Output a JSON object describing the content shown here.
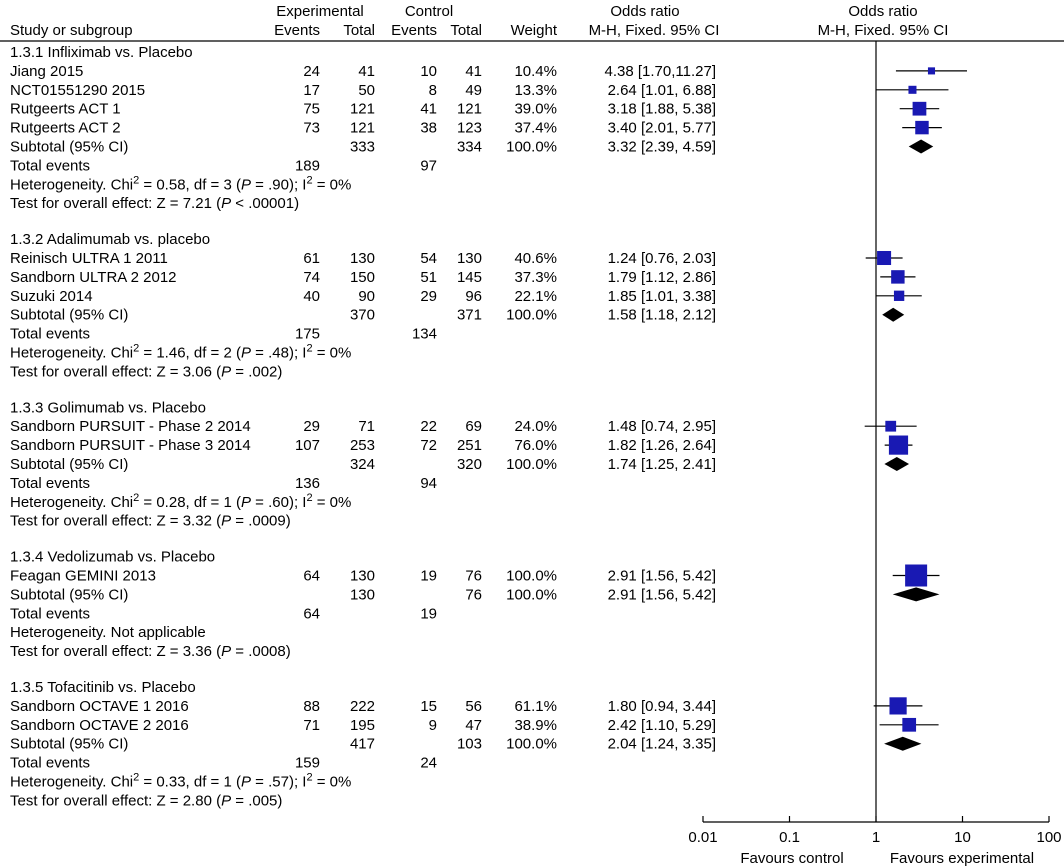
{
  "headers": {
    "study": "Study or subgroup",
    "experimental": "Experimental",
    "control": "Control",
    "events": "Events",
    "total": "Total",
    "weight": "Weight",
    "odds_ratio_text": "Odds ratio",
    "method_text": "M-H, Fixed. 95% CI",
    "odds_ratio_plot": "Odds ratio",
    "method_plot": "M-H, Fixed. 95% CI"
  },
  "colors": {
    "marker": "#1919b3",
    "diamond": "#000000",
    "line": "#000000"
  },
  "chart_data": {
    "type": "forest",
    "x_scale": "log",
    "xlim": [
      0.01,
      100
    ],
    "ticks": [
      "0.01",
      "0.1",
      "1",
      "10",
      "100"
    ],
    "tick_values": [
      0.01,
      0.1,
      1,
      10,
      100
    ],
    "null_line": 1,
    "favours_left": "Favours control",
    "favours_right": "Favours experimental",
    "subgroups": [
      {
        "name": "1.3.1 Infliximab vs. Placebo",
        "studies": [
          {
            "name": "Jiang 2015",
            "e_events": "24",
            "e_total": "41",
            "c_events": "10",
            "c_total": "41",
            "weight": "10.4%",
            "ci_text": "4.38 [1.70,11.27]",
            "or": 4.38,
            "lo": 1.7,
            "hi": 11.27,
            "w": 10.4
          },
          {
            "name": "NCT01551290 2015",
            "e_events": "17",
            "e_total": "50",
            "c_events": "8",
            "c_total": "49",
            "weight": "13.3%",
            "ci_text": "2.64 [1.01, 6.88]",
            "or": 2.64,
            "lo": 1.01,
            "hi": 6.88,
            "w": 13.3
          },
          {
            "name": "Rutgeerts ACT 1",
            "e_events": "75",
            "e_total": "121",
            "c_events": "41",
            "c_total": "121",
            "weight": "39.0%",
            "ci_text": "3.18 [1.88, 5.38]",
            "or": 3.18,
            "lo": 1.88,
            "hi": 5.38,
            "w": 39.0
          },
          {
            "name": "Rutgeerts ACT 2",
            "e_events": "73",
            "e_total": "121",
            "c_events": "38",
            "c_total": "123",
            "weight": "37.4%",
            "ci_text": "3.40 [2.01, 5.77]",
            "or": 3.4,
            "lo": 2.01,
            "hi": 5.77,
            "w": 37.4
          }
        ],
        "subtotal": {
          "label": "Subtotal (95% CI)",
          "e_total": "333",
          "c_total": "334",
          "weight": "100.0%",
          "ci_text": "3.32 [2.39, 4.59]",
          "or": 3.32,
          "lo": 2.39,
          "hi": 4.59
        },
        "total_events": {
          "label": "Total events",
          "e": "189",
          "c": "97"
        },
        "heterogeneity": {
          "pre": "Heterogeneity. Chi",
          "sup": "2",
          "mid": " = 0.58, df = 3 (",
          "p": "P",
          "post": " = .90); I",
          "sup2": "2",
          "end": " = 0%"
        },
        "overall": {
          "pre": "Test for overall effect: Z = 7.21 (",
          "p": "P",
          "post": " < .00001)"
        }
      },
      {
        "name": "1.3.2 Adalimumab vs. placebo",
        "studies": [
          {
            "name": "Reinisch ULTRA 1 2011",
            "e_events": "61",
            "e_total": "130",
            "c_events": "54",
            "c_total": "130",
            "weight": "40.6%",
            "ci_text": "1.24 [0.76, 2.03]",
            "or": 1.24,
            "lo": 0.76,
            "hi": 2.03,
            "w": 40.6
          },
          {
            "name": "Sandborn ULTRA 2 2012",
            "e_events": "74",
            "e_total": "150",
            "c_events": "51",
            "c_total": "145",
            "weight": "37.3%",
            "ci_text": "1.79 [1.12, 2.86]",
            "or": 1.79,
            "lo": 1.12,
            "hi": 2.86,
            "w": 37.3
          },
          {
            "name": "Suzuki 2014",
            "e_events": "40",
            "e_total": "90",
            "c_events": "29",
            "c_total": "96",
            "weight": "22.1%",
            "ci_text": "1.85 [1.01, 3.38]",
            "or": 1.85,
            "lo": 1.01,
            "hi": 3.38,
            "w": 22.1
          }
        ],
        "subtotal": {
          "label": "Subtotal (95% CI)",
          "e_total": "370",
          "c_total": "371",
          "weight": "100.0%",
          "ci_text": "1.58 [1.18, 2.12]",
          "or": 1.58,
          "lo": 1.18,
          "hi": 2.12
        },
        "total_events": {
          "label": "Total events",
          "e": "175",
          "c": "134"
        },
        "heterogeneity": {
          "pre": "Heterogeneity. Chi",
          "sup": "2",
          "mid": " = 1.46, df = 2 (",
          "p": "P",
          "post": " = .48); I",
          "sup2": "2",
          "end": " = 0%"
        },
        "overall": {
          "pre": "Test for overall effect: Z = 3.06 (",
          "p": "P",
          "post": " = .002)"
        }
      },
      {
        "name": "1.3.3 Golimumab vs. Placebo",
        "studies": [
          {
            "name": "Sandborn PURSUIT - Phase 2 2014",
            "e_events": "29",
            "e_total": "71",
            "c_events": "22",
            "c_total": "69",
            "weight": "24.0%",
            "ci_text": "1.48 [0.74, 2.95]",
            "or": 1.48,
            "lo": 0.74,
            "hi": 2.95,
            "w": 24.0
          },
          {
            "name": "Sandborn PURSUIT - Phase 3 2014",
            "e_events": "107",
            "e_total": "253",
            "c_events": "72",
            "c_total": "251",
            "weight": "76.0%",
            "ci_text": "1.82 [1.26, 2.64]",
            "or": 1.82,
            "lo": 1.26,
            "hi": 2.64,
            "w": 76.0
          }
        ],
        "subtotal": {
          "label": "Subtotal (95% CI)",
          "e_total": "324",
          "c_total": "320",
          "weight": "100.0%",
          "ci_text": "1.74 [1.25, 2.41]",
          "or": 1.74,
          "lo": 1.25,
          "hi": 2.41
        },
        "total_events": {
          "label": "Total events",
          "e": "136",
          "c": "94"
        },
        "heterogeneity": {
          "pre": "Heterogeneity. Chi",
          "sup": "2",
          "mid": " = 0.28, df = 1 (",
          "p": "P",
          "post": " = .60); I",
          "sup2": "2",
          "end": " = 0%"
        },
        "overall": {
          "pre": "Test for overall effect: Z = 3.32 (",
          "p": "P",
          "post": " = .0009)"
        }
      },
      {
        "name": "1.3.4 Vedolizumab vs. Placebo",
        "studies": [
          {
            "name": "Feagan GEMINI 2013",
            "e_events": "64",
            "e_total": "130",
            "c_events": "19",
            "c_total": "76",
            "weight": "100.0%",
            "ci_text": "2.91 [1.56, 5.42]",
            "or": 2.91,
            "lo": 1.56,
            "hi": 5.42,
            "w": 100.0
          }
        ],
        "subtotal": {
          "label": "Subtotal (95% CI)",
          "e_total": "130",
          "c_total": "76",
          "weight": "100.0%",
          "ci_text": "2.91 [1.56, 5.42]",
          "or": 2.91,
          "lo": 1.56,
          "hi": 5.42
        },
        "total_events": {
          "label": "Total events",
          "e": "64",
          "c": "19"
        },
        "heterogeneity": {
          "plain": "Heterogeneity. Not applicable"
        },
        "overall": {
          "pre": "Test for overall effect: Z = 3.36 (",
          "p": "P",
          "post": " = .0008)"
        }
      },
      {
        "name": "1.3.5 Tofacitinib vs. Placebo",
        "studies": [
          {
            "name": "Sandborn OCTAVE 1 2016",
            "e_events": "88",
            "e_total": "222",
            "c_events": "15",
            "c_total": "56",
            "weight": "61.1%",
            "ci_text": "1.80 [0.94, 3.44]",
            "or": 1.8,
            "lo": 0.94,
            "hi": 3.44,
            "w": 61.1
          },
          {
            "name": "Sandborn OCTAVE 2 2016",
            "e_events": "71",
            "e_total": "195",
            "c_events": "9",
            "c_total": "47",
            "weight": "38.9%",
            "ci_text": "2.42 [1.10, 5.29]",
            "or": 2.42,
            "lo": 1.1,
            "hi": 5.29,
            "w": 38.9
          }
        ],
        "subtotal": {
          "label": "Subtotal (95% CI)",
          "e_total": "417",
          "c_total": "103",
          "weight": "100.0%",
          "ci_text": "2.04 [1.24, 3.35]",
          "or": 2.04,
          "lo": 1.24,
          "hi": 3.35
        },
        "total_events": {
          "label": "Total events",
          "e": "159",
          "c": "24"
        },
        "heterogeneity": {
          "pre": "Heterogeneity. Chi",
          "sup": "2",
          "mid": " = 0.33, df = 1 (",
          "p": "P",
          "post": " = .57); I",
          "sup2": "2",
          "end": " = 0%"
        },
        "overall": {
          "pre": "Test for overall effect: Z = 2.80 (",
          "p": "P",
          "post": " = .005)"
        }
      }
    ]
  }
}
